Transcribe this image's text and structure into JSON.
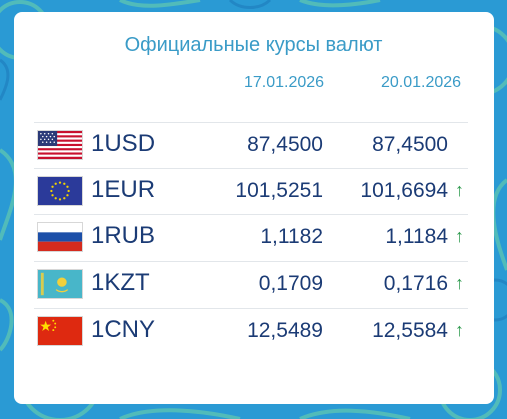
{
  "header": {
    "title": "Официальные курсы валют",
    "date1": "17.01.2026",
    "date2": "20.01.2026"
  },
  "colors": {
    "accent": "#3a9bc7",
    "text": "#1b3b75",
    "up": "#2e9a4e",
    "background": "#2a9ad4"
  },
  "rates": [
    {
      "code": "1USD",
      "flag": "usa-flag-icon",
      "v1": "87,4500",
      "v2": "87,4500",
      "trend": ""
    },
    {
      "code": "1EUR",
      "flag": "eu-flag-icon",
      "v1": "101,5251",
      "v2": "101,6694",
      "trend": "↑"
    },
    {
      "code": "1RUB",
      "flag": "russia-flag-icon",
      "v1": "1,1182",
      "v2": "1,1184",
      "trend": "↑"
    },
    {
      "code": "1KZT",
      "flag": "kazakhstan-flag-icon",
      "v1": "0,1709",
      "v2": "0,1716",
      "trend": "↑"
    },
    {
      "code": "1CNY",
      "flag": "china-flag-icon",
      "v1": "12,5489",
      "v2": "12,5584",
      "trend": "↑"
    }
  ]
}
